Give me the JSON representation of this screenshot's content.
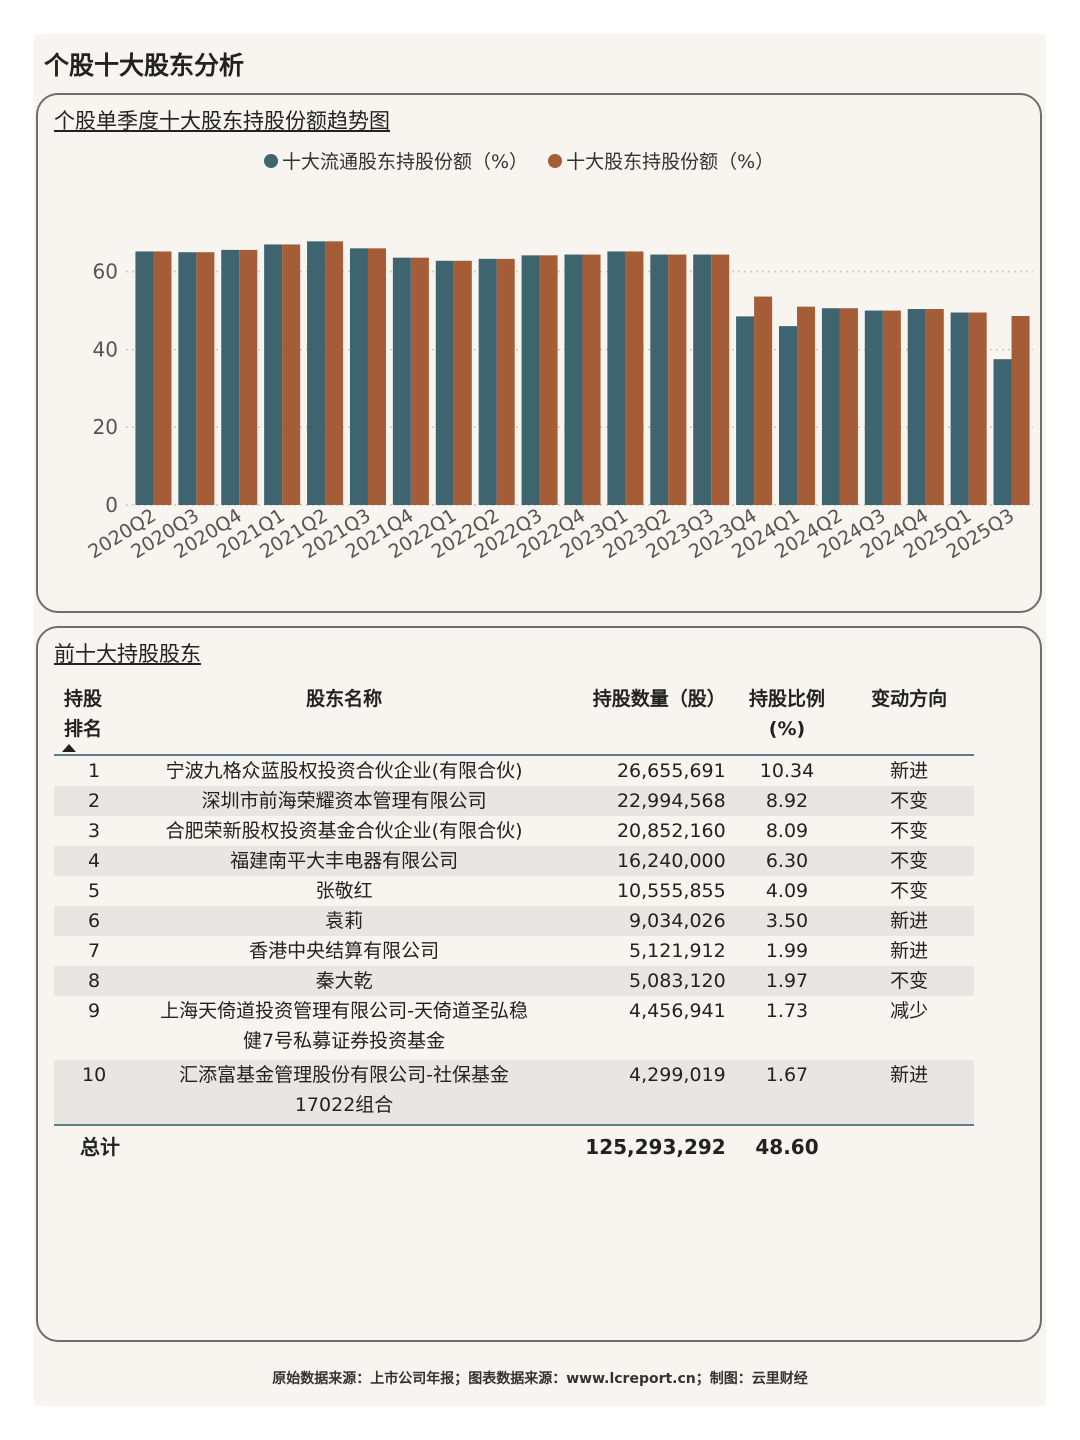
{
  "page_title": "个股十大股东分析",
  "chart_panel": {
    "title": "个股单季度十大股东持股份额趋势图"
  },
  "colors": {
    "series1": "#3e6470",
    "series2": "#a45d37",
    "grid": "#c9c6c2",
    "axis_text": "#555555"
  },
  "chart_data": {
    "type": "bar",
    "title": "个股单季度十大股东持股份额趋势图",
    "categories": [
      "2020Q2",
      "2020Q3",
      "2020Q4",
      "2021Q1",
      "2021Q2",
      "2021Q3",
      "2021Q4",
      "2022Q1",
      "2022Q2",
      "2022Q3",
      "2022Q4",
      "2023Q1",
      "2023Q2",
      "2023Q3",
      "2023Q4",
      "2024Q1",
      "2024Q2",
      "2024Q3",
      "2024Q4",
      "2025Q1",
      "2025Q3"
    ],
    "series": [
      {
        "name": "十大流通股东持股份额（%）",
        "values": [
          65.2,
          65.0,
          65.6,
          67.0,
          67.8,
          66.0,
          63.6,
          62.8,
          63.3,
          64.2,
          64.4,
          65.2,
          64.4,
          64.4,
          48.5,
          46.0,
          50.6,
          50.0,
          50.4,
          49.5,
          37.5
        ]
      },
      {
        "name": "十大股东持股份额（%）",
        "values": [
          65.2,
          65.0,
          65.6,
          67.0,
          67.8,
          66.0,
          63.6,
          62.8,
          63.3,
          64.2,
          64.4,
          65.2,
          64.4,
          64.4,
          53.6,
          51.0,
          50.6,
          50.0,
          50.4,
          49.5,
          48.6
        ]
      }
    ],
    "yticks": [
      "0",
      "20",
      "40",
      "60"
    ],
    "ylim": [
      0,
      72
    ],
    "grid": "horizontal dotted",
    "legend_position": "top"
  },
  "table_panel": {
    "title": "前十大持股股东",
    "headers": {
      "rank_line1": "持股",
      "rank_line2": "排名",
      "name": "股东名称",
      "shares": "持股数量（股）",
      "ratio_line1": "持股比例",
      "ratio_line2": "(%)",
      "direction": "变动方向"
    },
    "rows": [
      {
        "rank": "1",
        "name": "宁波九格众蓝股权投资合伙企业(有限合伙)",
        "shares": "26,655,691",
        "ratio": "10.34",
        "direction": "新进"
      },
      {
        "rank": "2",
        "name": "深圳市前海荣耀资本管理有限公司",
        "shares": "22,994,568",
        "ratio": "8.92",
        "direction": "不变"
      },
      {
        "rank": "3",
        "name": "合肥荣新股权投资基金合伙企业(有限合伙)",
        "shares": "20,852,160",
        "ratio": "8.09",
        "direction": "不变"
      },
      {
        "rank": "4",
        "name": "福建南平大丰电器有限公司",
        "shares": "16,240,000",
        "ratio": "6.30",
        "direction": "不变"
      },
      {
        "rank": "5",
        "name": "张敬红",
        "shares": "10,555,855",
        "ratio": "4.09",
        "direction": "不变"
      },
      {
        "rank": "6",
        "name": "袁莉",
        "shares": "9,034,026",
        "ratio": "3.50",
        "direction": "新进"
      },
      {
        "rank": "7",
        "name": "香港中央结算有限公司",
        "shares": "5,121,912",
        "ratio": "1.99",
        "direction": "新进"
      },
      {
        "rank": "8",
        "name": "秦大乾",
        "shares": "5,083,120",
        "ratio": "1.97",
        "direction": "不变"
      },
      {
        "rank": "9",
        "name_line1": "上海天倚道投资管理有限公司-天倚道圣弘稳",
        "name_line2": "健7号私募证券投资基金",
        "shares": "4,456,941",
        "ratio": "1.73",
        "direction": "减少"
      },
      {
        "rank": "10",
        "name_line1": "汇添富基金管理股份有限公司-社保基金",
        "name_line2": "17022组合",
        "shares": "4,299,019",
        "ratio": "1.67",
        "direction": "新进"
      }
    ],
    "total": {
      "label": "总计",
      "shares": "125,293,292",
      "ratio": "48.60"
    }
  },
  "footer": "原始数据来源：上市公司年报；图表数据来源：www.lcreport.cn；制图：云里财经"
}
